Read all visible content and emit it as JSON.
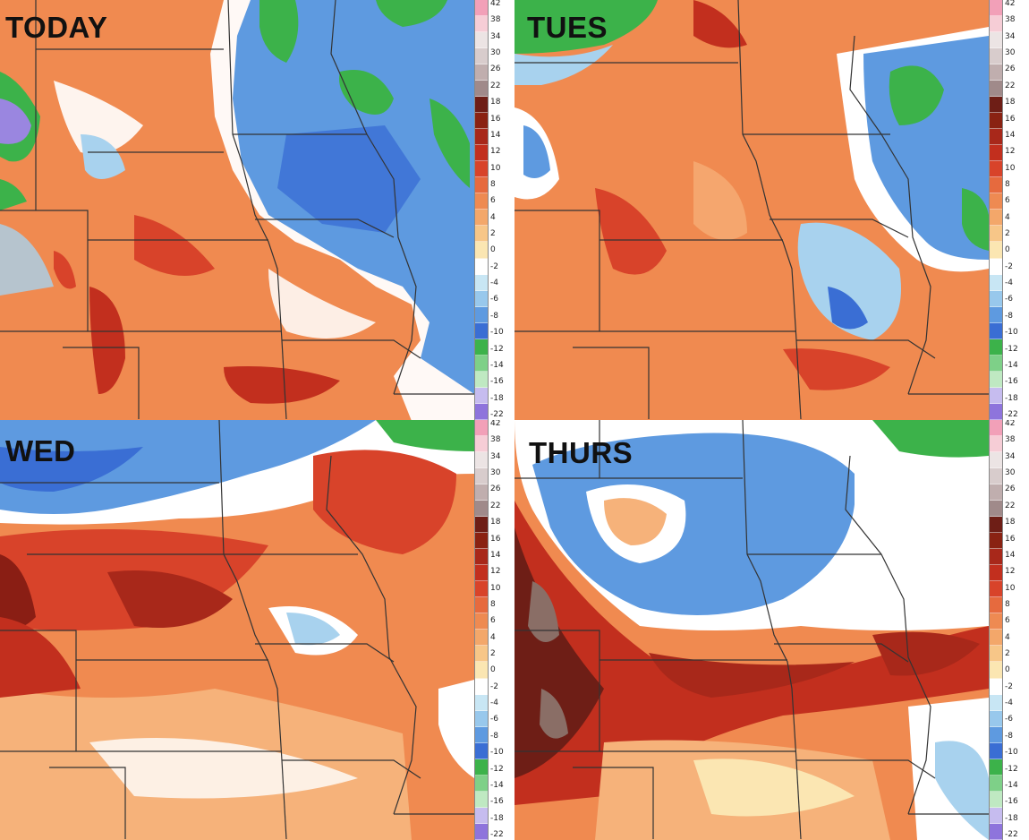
{
  "panels": [
    {
      "label": "TODAY"
    },
    {
      "label": "TUES"
    },
    {
      "label": "WED"
    },
    {
      "label": "THURS"
    }
  ],
  "colorbar": {
    "ticks": [
      "42",
      "38",
      "34",
      "30",
      "26",
      "22",
      "18",
      "16",
      "14",
      "12",
      "10",
      "8",
      "6",
      "4",
      "2",
      "0",
      "-2",
      "-4",
      "-6",
      "-8",
      "-10",
      "-12",
      "-14",
      "-16",
      "-18",
      "-22"
    ],
    "colors": [
      "#f2a0b8",
      "#f6cdd6",
      "#ece4e4",
      "#d8cccc",
      "#c0aeae",
      "#a08a8a",
      "#6e1e16",
      "#8a2212",
      "#a8281a",
      "#c22f1e",
      "#d8432a",
      "#e66a3e",
      "#ee8a52",
      "#f3a76a",
      "#f7c688",
      "#fbe6b2",
      "#ffffff",
      "#c8e6f4",
      "#98c8ec",
      "#5e9ae0",
      "#3a6ed4",
      "#3cb24a",
      "#7ed088",
      "#bfe9c2",
      "#c6bcef",
      "#8e74dc"
    ],
    "palette": {
      "dark_red": "#8a1e14",
      "red": "#d8432a",
      "orange": "#f08a50",
      "light_orange": "#f6b27a",
      "yellow": "#fbe6b2",
      "white": "#ffffff",
      "light_blue": "#a8d2ee",
      "blue": "#4a80d8",
      "green": "#3cb24a",
      "purple": "#9a86e0",
      "border": "#333333"
    }
  }
}
